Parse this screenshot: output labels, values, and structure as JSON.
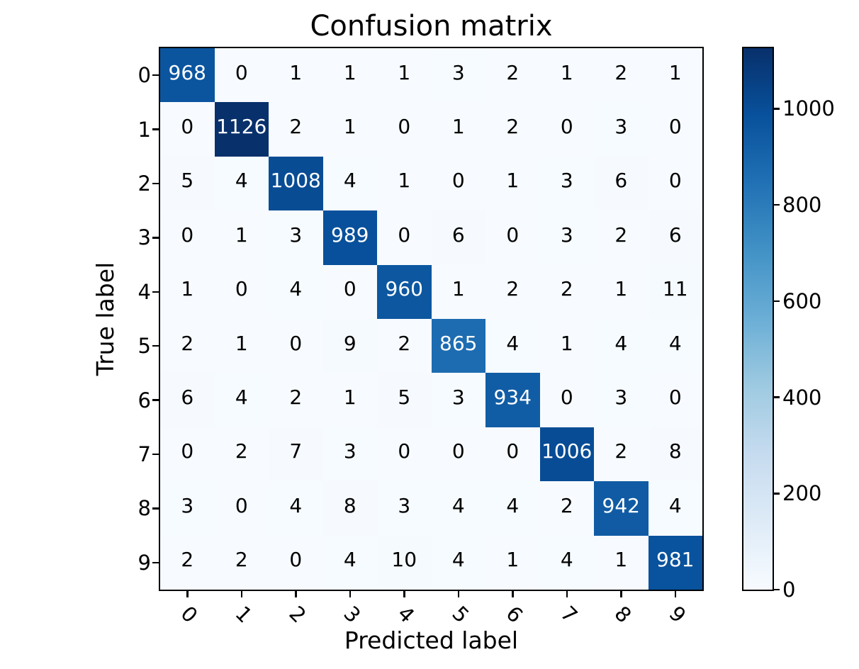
{
  "title": "Confusion matrix",
  "xlabel": "Predicted label",
  "ylabel": "True label",
  "chart_data": {
    "type": "heatmap",
    "title": "Confusion matrix",
    "xlabel": "Predicted label",
    "ylabel": "True label",
    "x_tick_labels": [
      "0",
      "1",
      "2",
      "3",
      "4",
      "5",
      "6",
      "7",
      "8",
      "9"
    ],
    "y_tick_labels": [
      "0",
      "1",
      "2",
      "3",
      "4",
      "5",
      "6",
      "7",
      "8",
      "9"
    ],
    "matrix": [
      [
        968,
        0,
        1,
        1,
        1,
        3,
        2,
        1,
        2,
        1
      ],
      [
        0,
        1126,
        2,
        1,
        0,
        1,
        2,
        0,
        3,
        0
      ],
      [
        5,
        4,
        1008,
        4,
        1,
        0,
        1,
        3,
        6,
        0
      ],
      [
        0,
        1,
        3,
        989,
        0,
        6,
        0,
        3,
        2,
        6
      ],
      [
        1,
        0,
        4,
        0,
        960,
        1,
        2,
        2,
        1,
        11
      ],
      [
        2,
        1,
        0,
        9,
        2,
        865,
        4,
        1,
        4,
        4
      ],
      [
        6,
        4,
        2,
        1,
        5,
        3,
        934,
        0,
        3,
        0
      ],
      [
        0,
        2,
        7,
        3,
        0,
        0,
        0,
        1006,
        2,
        8
      ],
      [
        3,
        0,
        4,
        8,
        3,
        4,
        4,
        2,
        942,
        4
      ],
      [
        2,
        2,
        0,
        4,
        10,
        4,
        1,
        4,
        1,
        981
      ]
    ],
    "vmin": 0,
    "vmax": 1126,
    "colorbar_ticks": [
      0,
      200,
      400,
      600,
      800,
      1000
    ],
    "colormap": "Blues",
    "colormap_anchors": [
      [
        0.0,
        "#f7fbff"
      ],
      [
        0.125,
        "#deebf7"
      ],
      [
        0.25,
        "#c6dbef"
      ],
      [
        0.375,
        "#9ecae1"
      ],
      [
        0.5,
        "#6baed6"
      ],
      [
        0.625,
        "#4292c6"
      ],
      [
        0.75,
        "#2171b5"
      ],
      [
        0.875,
        "#08519c"
      ],
      [
        1.0,
        "#08306b"
      ]
    ],
    "cell_text_threshold": 563,
    "cell_text_color_high": "#ffffff",
    "cell_text_color_low": "#000000",
    "axis_color": "#000000",
    "background_color": "#ffffff",
    "grid": false,
    "legend_position": "colorbar-right"
  }
}
